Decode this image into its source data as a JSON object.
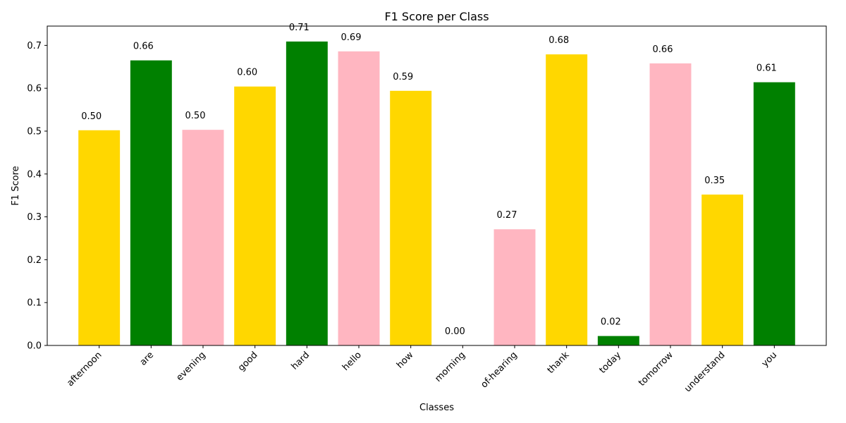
{
  "chart_data": {
    "type": "bar",
    "title": "F1 Score per Class",
    "xlabel": "Classes",
    "ylabel": "F1 Score",
    "categories": [
      "afternoon",
      "are",
      "evening",
      "good",
      "hard",
      "hello",
      "how",
      "morning",
      "of-hearing",
      "thank",
      "today",
      "tomorrow",
      "understand",
      "you"
    ],
    "values": [
      0.502,
      0.665,
      0.503,
      0.604,
      0.709,
      0.686,
      0.594,
      0.0,
      0.271,
      0.679,
      0.022,
      0.658,
      0.352,
      0.614
    ],
    "value_labels": [
      "0.50",
      "0.66",
      "0.50",
      "0.60",
      "0.71",
      "0.69",
      "0.59",
      "0.00",
      "0.27",
      "0.68",
      "0.02",
      "0.66",
      "0.35",
      "0.61"
    ],
    "colors": [
      "#FFD700",
      "#008000",
      "#FFB6C1",
      "#FFD700",
      "#008000",
      "#FFB6C1",
      "#FFD700",
      "#FFB6C1",
      "#FFB6C1",
      "#FFD700",
      "#008000",
      "#FFB6C1",
      "#FFD700",
      "#008000"
    ],
    "yticks": [
      "0.0",
      "0.1",
      "0.2",
      "0.3",
      "0.4",
      "0.5",
      "0.6",
      "0.7"
    ],
    "ylim": [
      0,
      0.745
    ],
    "grid": false,
    "legend": "none"
  }
}
